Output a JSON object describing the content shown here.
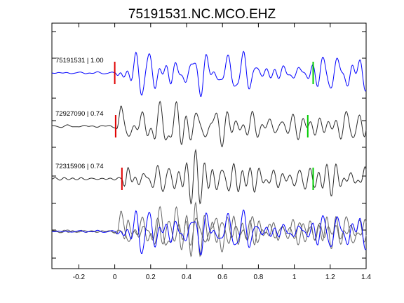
{
  "chart_data": {
    "type": "line",
    "title": "75191531.NC.MCO.EHZ",
    "xlabel": "",
    "ylabel": "",
    "xlim": [
      -0.35,
      1.4
    ],
    "xticks": [
      -0.2,
      0,
      0.2,
      0.4,
      0.6,
      0.8,
      1,
      1.2,
      1.4
    ],
    "xtick_labels": [
      "-0.2",
      "0",
      "0.2",
      "0.4",
      "0.6",
      "0.8",
      "1",
      "1.2",
      "1.4"
    ],
    "grid": false,
    "colors": {
      "master": "#0000ff",
      "trace": "#2b2b2b",
      "overlay": "#666666",
      "p_pick": "#e00000",
      "s_pick": "#00cc00",
      "axes": "#000000"
    },
    "series": [
      {
        "name": "75191531 | 1.00",
        "label": "75191531 | 1.00",
        "color": "#0000ff",
        "p_pick": 0.0,
        "s_pick": 1.105,
        "onset": 0.0,
        "seed": 11
      },
      {
        "name": "72927090 | 0.74",
        "label": "72927090 | 0.74",
        "color": "#2b2b2b",
        "p_pick": 0.005,
        "s_pick": 1.075,
        "onset": 0.005,
        "seed": 23
      },
      {
        "name": "72315906 | 0.74",
        "label": "72315906 | 0.74",
        "color": "#2b2b2b",
        "p_pick": 0.04,
        "s_pick": 1.105,
        "onset": 0.04,
        "seed": 37
      }
    ],
    "overlay": {
      "name": "stack",
      "members": [
        0,
        1,
        2
      ]
    }
  }
}
